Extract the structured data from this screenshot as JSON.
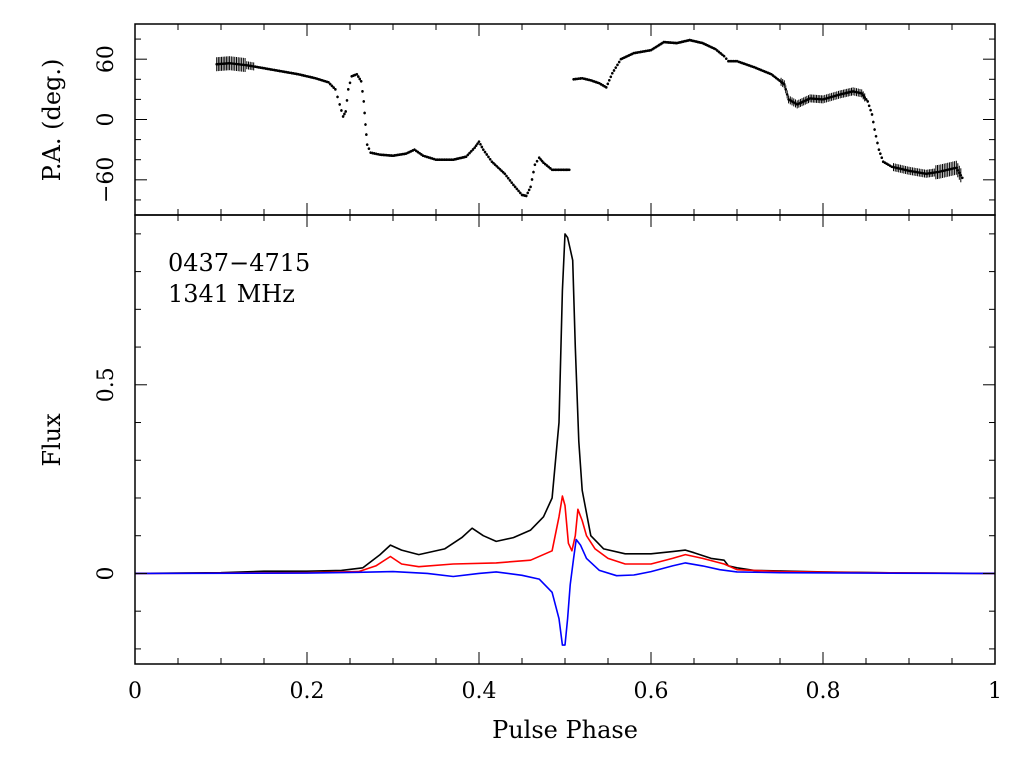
{
  "chart_data": [
    {
      "type": "scatter",
      "panel": "top",
      "ylabel": "P.A. (deg.)",
      "xlim": [
        0,
        1
      ],
      "ylim": [
        -95,
        95
      ],
      "yticks": [
        -60,
        0,
        60
      ],
      "ytick_labels": [
        "−60",
        "0",
        "60"
      ],
      "error_bars": true,
      "series": [
        {
          "color": "#000000",
          "segments": [
            [
              [
                0.095,
                55
              ],
              [
                0.11,
                56
              ],
              [
                0.13,
                54
              ],
              [
                0.15,
                51
              ],
              [
                0.17,
                48
              ],
              [
                0.19,
                45
              ],
              [
                0.21,
                41
              ],
              [
                0.225,
                37
              ],
              [
                0.233,
                30
              ],
              [
                0.238,
                15
              ],
              [
                0.242,
                3
              ],
              [
                0.245,
                8
              ],
              [
                0.248,
                30
              ],
              [
                0.252,
                43
              ],
              [
                0.258,
                45
              ],
              [
                0.263,
                38
              ],
              [
                0.266,
                18
              ],
              [
                0.268,
                -5
              ],
              [
                0.27,
                -25
              ],
              [
                0.274,
                -33
              ],
              [
                0.285,
                -35
              ],
              [
                0.3,
                -36
              ],
              [
                0.315,
                -34
              ],
              [
                0.325,
                -30
              ],
              [
                0.335,
                -36
              ],
              [
                0.35,
                -40
              ],
              [
                0.37,
                -40
              ],
              [
                0.385,
                -37
              ],
              [
                0.395,
                -28
              ],
              [
                0.4,
                -22
              ],
              [
                0.405,
                -30
              ],
              [
                0.415,
                -42
              ],
              [
                0.43,
                -54
              ],
              [
                0.44,
                -65
              ],
              [
                0.45,
                -75
              ],
              [
                0.455,
                -76
              ],
              [
                0.46,
                -67
              ],
              [
                0.465,
                -45
              ],
              [
                0.47,
                -38
              ],
              [
                0.475,
                -43
              ],
              [
                0.485,
                -50
              ],
              [
                0.5,
                -50
              ],
              [
                0.505,
                -50
              ]
            ],
            [
              [
                0.51,
                40
              ],
              [
                0.52,
                41
              ],
              [
                0.53,
                39
              ],
              [
                0.54,
                36
              ],
              [
                0.548,
                32
              ],
              [
                0.555,
                46
              ],
              [
                0.565,
                60
              ],
              [
                0.58,
                66
              ],
              [
                0.6,
                69
              ],
              [
                0.615,
                77
              ],
              [
                0.63,
                76
              ],
              [
                0.645,
                79
              ],
              [
                0.66,
                76
              ],
              [
                0.675,
                70
              ],
              [
                0.685,
                63
              ],
              [
                0.69,
                58
              ],
              [
                0.7,
                58
              ],
              [
                0.72,
                52
              ],
              [
                0.74,
                45
              ],
              [
                0.755,
                35
              ],
              [
                0.76,
                20
              ],
              [
                0.77,
                15
              ],
              [
                0.785,
                21
              ],
              [
                0.8,
                20
              ],
              [
                0.82,
                25
              ],
              [
                0.835,
                28
              ],
              [
                0.845,
                26
              ],
              [
                0.852,
                18
              ],
              [
                0.857,
                5
              ],
              [
                0.86,
                -10
              ],
              [
                0.865,
                -30
              ],
              [
                0.87,
                -42
              ],
              [
                0.88,
                -47
              ],
              [
                0.9,
                -51
              ],
              [
                0.92,
                -54
              ],
              [
                0.935,
                -52
              ],
              [
                0.945,
                -50
              ],
              [
                0.955,
                -48
              ],
              [
                0.962,
                -58
              ]
            ]
          ]
        }
      ]
    },
    {
      "type": "line",
      "panel": "bottom",
      "xlabel": "Pulse Phase",
      "ylabel": "Flux",
      "xlim": [
        0,
        1
      ],
      "ylim": [
        -0.24,
        0.95
      ],
      "xticks": [
        0,
        0.2,
        0.4,
        0.6,
        0.8,
        1
      ],
      "xtick_labels": [
        "0",
        "0.2",
        "0.4",
        "0.6",
        "0.8",
        "1"
      ],
      "yticks": [
        0,
        0.5
      ],
      "ytick_labels": [
        "0",
        "0.5"
      ],
      "annotations": [
        "0437−4715",
        "1341 MHz"
      ],
      "grid": false,
      "series": [
        {
          "color": "#000000",
          "points": [
            [
              0,
              0
            ],
            [
              0.1,
              0.002
            ],
            [
              0.15,
              0.006
            ],
            [
              0.2,
              0.006
            ],
            [
              0.24,
              0.008
            ],
            [
              0.265,
              0.015
            ],
            [
              0.285,
              0.05
            ],
            [
              0.297,
              0.075
            ],
            [
              0.31,
              0.062
            ],
            [
              0.33,
              0.05
            ],
            [
              0.36,
              0.065
            ],
            [
              0.38,
              0.095
            ],
            [
              0.392,
              0.12
            ],
            [
              0.405,
              0.1
            ],
            [
              0.42,
              0.085
            ],
            [
              0.44,
              0.095
            ],
            [
              0.46,
              0.115
            ],
            [
              0.475,
              0.15
            ],
            [
              0.485,
              0.2
            ],
            [
              0.493,
              0.4
            ],
            [
              0.497,
              0.75
            ],
            [
              0.5,
              0.9
            ],
            [
              0.503,
              0.89
            ],
            [
              0.506,
              0.86
            ],
            [
              0.509,
              0.83
            ],
            [
              0.512,
              0.6
            ],
            [
              0.516,
              0.35
            ],
            [
              0.52,
              0.22
            ],
            [
              0.53,
              0.1
            ],
            [
              0.545,
              0.065
            ],
            [
              0.57,
              0.052
            ],
            [
              0.6,
              0.052
            ],
            [
              0.625,
              0.058
            ],
            [
              0.64,
              0.062
            ],
            [
              0.65,
              0.055
            ],
            [
              0.67,
              0.04
            ],
            [
              0.685,
              0.035
            ],
            [
              0.69,
              0.02
            ],
            [
              0.7,
              0.015
            ],
            [
              0.72,
              0.008
            ],
            [
              0.8,
              0.004
            ],
            [
              0.9,
              0.001
            ],
            [
              1,
              0
            ]
          ]
        },
        {
          "color": "#ff0000",
          "points": [
            [
              0,
              0
            ],
            [
              0.2,
              0.002
            ],
            [
              0.26,
              0.005
            ],
            [
              0.28,
              0.02
            ],
            [
              0.297,
              0.045
            ],
            [
              0.31,
              0.025
            ],
            [
              0.33,
              0.018
            ],
            [
              0.37,
              0.025
            ],
            [
              0.42,
              0.028
            ],
            [
              0.46,
              0.035
            ],
            [
              0.485,
              0.06
            ],
            [
              0.493,
              0.15
            ],
            [
              0.497,
              0.205
            ],
            [
              0.5,
              0.18
            ],
            [
              0.504,
              0.08
            ],
            [
              0.508,
              0.06
            ],
            [
              0.512,
              0.1
            ],
            [
              0.515,
              0.17
            ],
            [
              0.52,
              0.14
            ],
            [
              0.525,
              0.1
            ],
            [
              0.535,
              0.065
            ],
            [
              0.55,
              0.04
            ],
            [
              0.57,
              0.025
            ],
            [
              0.6,
              0.025
            ],
            [
              0.625,
              0.04
            ],
            [
              0.64,
              0.05
            ],
            [
              0.66,
              0.04
            ],
            [
              0.685,
              0.025
            ],
            [
              0.7,
              0.01
            ],
            [
              0.75,
              0.005
            ],
            [
              0.85,
              0.002
            ],
            [
              1,
              0
            ]
          ]
        },
        {
          "color": "#0000ff",
          "points": [
            [
              0,
              0
            ],
            [
              0.2,
              0.001
            ],
            [
              0.26,
              0.003
            ],
            [
              0.28,
              0.004
            ],
            [
              0.3,
              0.005
            ],
            [
              0.34,
              0
            ],
            [
              0.37,
              -0.008
            ],
            [
              0.4,
              0
            ],
            [
              0.42,
              0.004
            ],
            [
              0.45,
              -0.005
            ],
            [
              0.47,
              -0.015
            ],
            [
              0.485,
              -0.05
            ],
            [
              0.493,
              -0.12
            ],
            [
              0.497,
              -0.19
            ],
            [
              0.5,
              -0.19
            ],
            [
              0.503,
              -0.12
            ],
            [
              0.506,
              -0.03
            ],
            [
              0.51,
              0.04
            ],
            [
              0.513,
              0.09
            ],
            [
              0.518,
              0.075
            ],
            [
              0.525,
              0.04
            ],
            [
              0.54,
              0.008
            ],
            [
              0.56,
              -0.006
            ],
            [
              0.58,
              -0.004
            ],
            [
              0.6,
              0.005
            ],
            [
              0.625,
              0.02
            ],
            [
              0.64,
              0.028
            ],
            [
              0.66,
              0.02
            ],
            [
              0.68,
              0.01
            ],
            [
              0.7,
              0.004
            ],
            [
              0.75,
              0.002
            ],
            [
              0.85,
              0.001
            ],
            [
              1,
              0
            ]
          ]
        }
      ]
    }
  ]
}
